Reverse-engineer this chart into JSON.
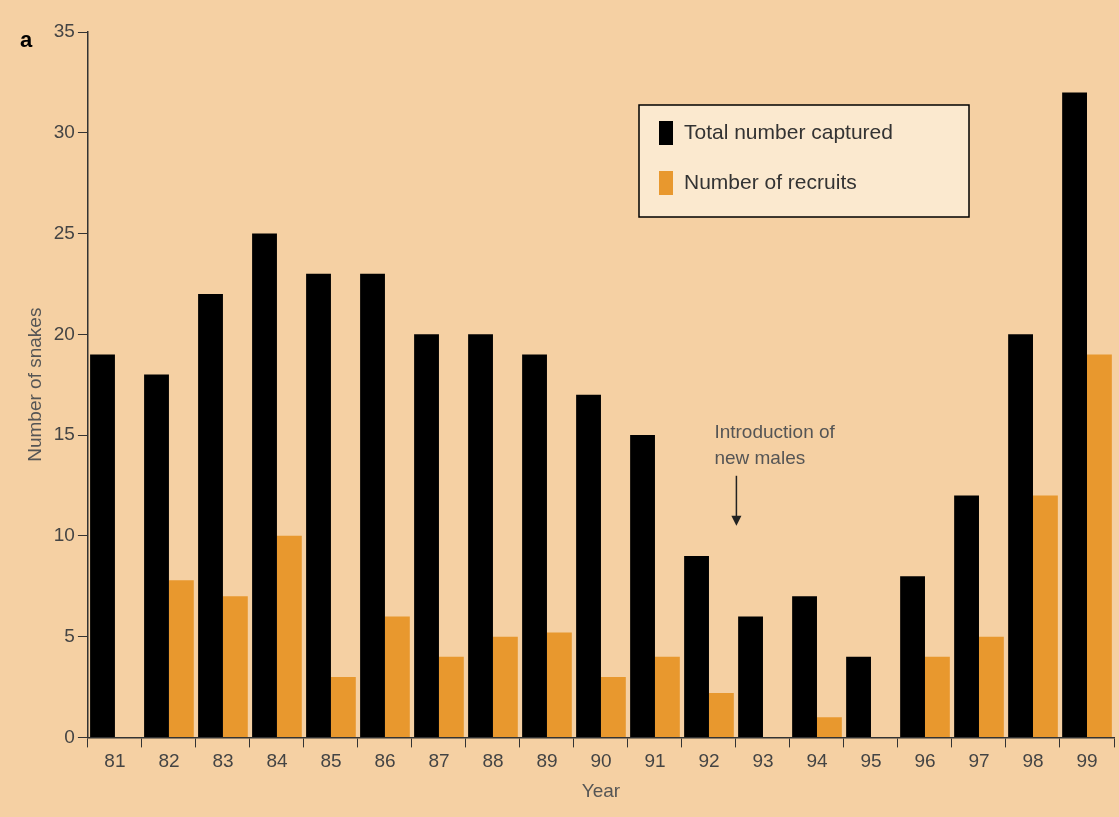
{
  "chart_data": {
    "type": "bar",
    "xlabel": "Year",
    "ylabel": "Number of snakes",
    "categories": [
      "81",
      "82",
      "83",
      "84",
      "85",
      "86",
      "87",
      "88",
      "89",
      "90",
      "91",
      "92",
      "93",
      "94",
      "95",
      "96",
      "97",
      "98",
      "99"
    ],
    "series": [
      {
        "name": "Total number captured",
        "color": "#000000",
        "values": [
          19,
          18,
          22,
          25,
          23,
          23,
          20,
          20,
          19,
          17,
          15,
          9,
          6,
          7,
          4,
          8,
          12,
          20,
          32
        ]
      },
      {
        "name": "Number of recruits",
        "color": "#e8982e",
        "values": [
          null,
          7.8,
          7,
          10,
          3,
          6,
          4,
          5,
          5.2,
          3,
          4,
          2.2,
          null,
          1,
          null,
          4,
          5,
          12,
          19
        ]
      }
    ],
    "ylim": [
      0,
      35
    ],
    "yticks": [
      0,
      5,
      10,
      15,
      20,
      25,
      30,
      35
    ],
    "grid": false,
    "legend": "top right",
    "annotations": [
      "a",
      "Introduction of\nnew males"
    ]
  }
}
